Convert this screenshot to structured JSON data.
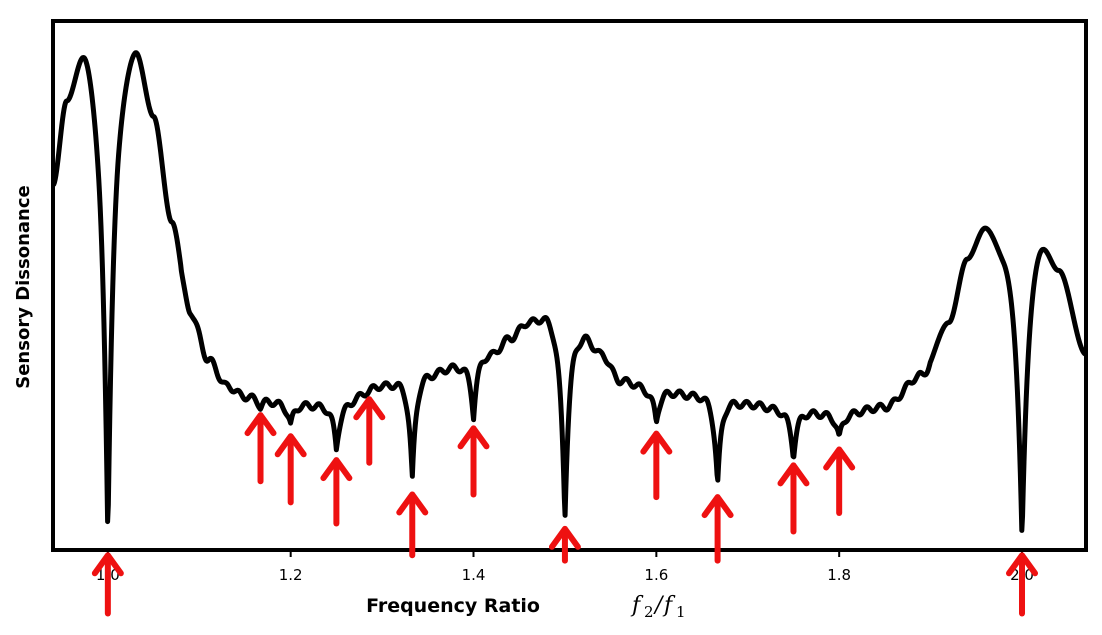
{
  "chart_data": {
    "type": "line",
    "title": "",
    "xlabel": "Frequency Ratio",
    "xlabel_math": {
      "var": "f",
      "sub1": "2",
      "sep": "/",
      "sub2": "1"
    },
    "ylabel": "Sensory Dissonance",
    "xlim": [
      0.94,
      2.07
    ],
    "ylim": [
      0,
      1
    ],
    "xticks": [
      {
        "value": 1.0,
        "label": "1.0"
      },
      {
        "value": 1.2,
        "label": "1.2"
      },
      {
        "value": 1.4,
        "label": "1.4"
      },
      {
        "value": 1.6,
        "label": "1.6"
      },
      {
        "value": 1.8,
        "label": "1.8"
      },
      {
        "value": 2.0,
        "label": "2.0"
      }
    ],
    "grid": false,
    "series": [
      {
        "color": "#000000",
        "baseline": {
          "x": [
            0.94,
            0.955,
            0.975,
            0.99,
            1.0,
            1.012,
            1.03,
            1.05,
            1.07,
            1.09,
            1.11,
            1.13,
            1.15,
            1.2,
            1.25,
            1.3,
            1.35,
            1.38,
            1.42,
            1.44,
            1.46,
            1.48,
            1.5,
            1.52,
            1.54,
            1.56,
            1.6,
            1.65,
            1.7,
            1.75,
            1.8,
            1.85,
            1.89,
            1.92,
            1.94,
            1.96,
            1.98,
            2.0,
            2.02,
            2.04,
            2.07
          ],
          "y": [
            0.69,
            0.85,
            0.95,
            0.9,
            0.88,
            0.9,
            0.95,
            0.82,
            0.62,
            0.45,
            0.36,
            0.31,
            0.29,
            0.275,
            0.27,
            0.31,
            0.33,
            0.345,
            0.37,
            0.4,
            0.43,
            0.44,
            0.42,
            0.405,
            0.37,
            0.32,
            0.3,
            0.29,
            0.275,
            0.26,
            0.255,
            0.27,
            0.33,
            0.43,
            0.55,
            0.61,
            0.57,
            0.55,
            0.59,
            0.53,
            0.37
          ]
        },
        "dips": [
          {
            "x": 1.0,
            "min": 0.02
          },
          {
            "x": 1.167,
            "min": 0.27
          },
          {
            "x": 1.2,
            "min": 0.235
          },
          {
            "x": 1.25,
            "min": 0.19
          },
          {
            "x": 1.286,
            "min": 0.3
          },
          {
            "x": 1.333,
            "min": 0.13
          },
          {
            "x": 1.4,
            "min": 0.25
          },
          {
            "x": 1.5,
            "min": 0.06
          },
          {
            "x": 1.6,
            "min": 0.24
          },
          {
            "x": 1.667,
            "min": 0.12
          },
          {
            "x": 1.75,
            "min": 0.175
          },
          {
            "x": 1.8,
            "min": 0.21
          },
          {
            "x": 2.0,
            "min": 0.02
          }
        ]
      }
    ],
    "annotations": {
      "arrow_color": "#ee1111",
      "arrows": [
        {
          "x": 1.0,
          "tip": -0.01,
          "tail": -0.12
        },
        {
          "x": 1.167,
          "tip": 0.255,
          "tail": 0.13
        },
        {
          "x": 1.2,
          "tip": 0.215,
          "tail": 0.09
        },
        {
          "x": 1.25,
          "tip": 0.17,
          "tail": 0.05
        },
        {
          "x": 1.286,
          "tip": 0.285,
          "tail": 0.165
        },
        {
          "x": 1.333,
          "tip": 0.105,
          "tail": -0.01
        },
        {
          "x": 1.4,
          "tip": 0.23,
          "tail": 0.105
        },
        {
          "x": 1.5,
          "tip": 0.04,
          "tail": -0.02
        },
        {
          "x": 1.6,
          "tip": 0.22,
          "tail": 0.1
        },
        {
          "x": 1.667,
          "tip": 0.1,
          "tail": -0.02
        },
        {
          "x": 1.75,
          "tip": 0.16,
          "tail": 0.035
        },
        {
          "x": 1.8,
          "tip": 0.19,
          "tail": 0.07
        },
        {
          "x": 2.0,
          "tip": -0.01,
          "tail": -0.12
        }
      ]
    }
  }
}
